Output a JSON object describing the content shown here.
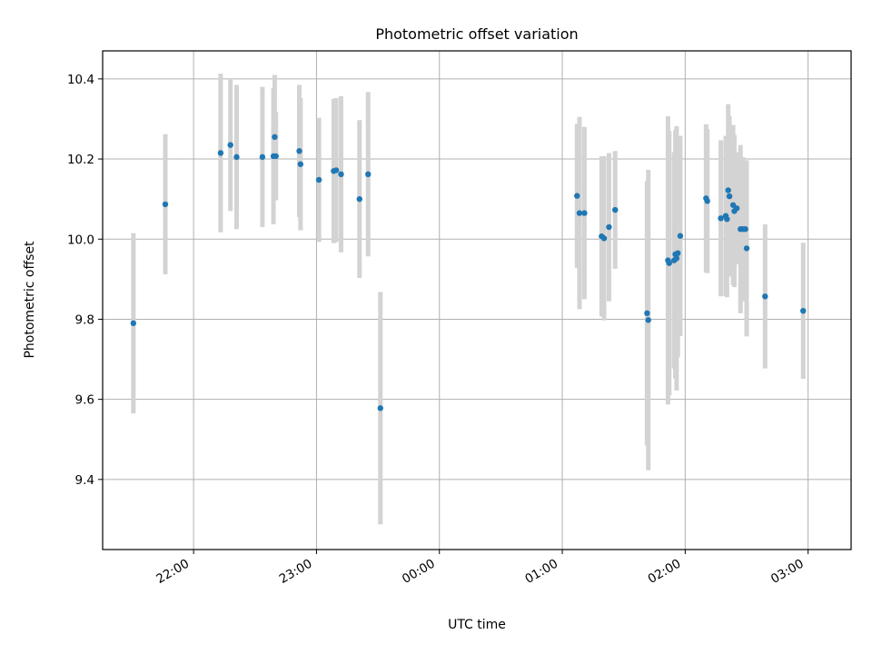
{
  "chart_data": {
    "type": "scatter",
    "title": "Photometric offset variation",
    "xlabel": "UTC time",
    "ylabel": "Photometric offset",
    "x_unit": "hours (UTC, relative to 00:00; negative = previous day)",
    "xlim": [
      -2.74,
      3.35
    ],
    "ylim": [
      9.225,
      10.47
    ],
    "grid": true,
    "x_ticks": [
      {
        "value": -2,
        "label": "22:00"
      },
      {
        "value": -1,
        "label": "23:00"
      },
      {
        "value": 0,
        "label": "00:00"
      },
      {
        "value": 1,
        "label": "01:00"
      },
      {
        "value": 2,
        "label": "02:00"
      },
      {
        "value": 3,
        "label": "03:00"
      }
    ],
    "y_ticks": [
      {
        "value": 9.4,
        "label": "9.4"
      },
      {
        "value": 9.6,
        "label": "9.6"
      },
      {
        "value": 9.8,
        "label": "9.8"
      },
      {
        "value": 10.0,
        "label": "10.0"
      },
      {
        "value": 10.2,
        "label": "10.2"
      },
      {
        "value": 10.4,
        "label": "10.4"
      }
    ],
    "marker_color": "#1f77b4",
    "errorbar_color": "#d3d3d3",
    "points": [
      {
        "x": -2.49,
        "y": 9.79,
        "err": 0.225
      },
      {
        "x": -2.23,
        "y": 10.087,
        "err": 0.175
      },
      {
        "x": -1.78,
        "y": 10.215,
        "err": 0.198
      },
      {
        "x": -1.7,
        "y": 10.235,
        "err": 0.165
      },
      {
        "x": -1.65,
        "y": 10.205,
        "err": 0.18
      },
      {
        "x": -1.44,
        "y": 10.205,
        "err": 0.175
      },
      {
        "x": -1.35,
        "y": 10.207,
        "err": 0.17
      },
      {
        "x": -1.34,
        "y": 10.255,
        "err": 0.155
      },
      {
        "x": -1.33,
        "y": 10.207,
        "err": 0.11
      },
      {
        "x": -1.14,
        "y": 10.22,
        "err": 0.165
      },
      {
        "x": -1.13,
        "y": 10.187,
        "err": 0.165
      },
      {
        "x": -0.98,
        "y": 10.148,
        "err": 0.155
      },
      {
        "x": -0.86,
        "y": 10.17,
        "err": 0.18
      },
      {
        "x": -0.84,
        "y": 10.172,
        "err": 0.18
      },
      {
        "x": -0.8,
        "y": 10.162,
        "err": 0.195
      },
      {
        "x": -0.65,
        "y": 10.1,
        "err": 0.197
      },
      {
        "x": -0.58,
        "y": 10.162,
        "err": 0.205
      },
      {
        "x": -0.48,
        "y": 9.578,
        "err": 0.29
      },
      {
        "x": 1.12,
        "y": 10.108,
        "err": 0.18
      },
      {
        "x": 1.14,
        "y": 10.065,
        "err": 0.24
      },
      {
        "x": 1.18,
        "y": 10.065,
        "err": 0.215
      },
      {
        "x": 1.32,
        "y": 10.007,
        "err": 0.2
      },
      {
        "x": 1.34,
        "y": 10.002,
        "err": 0.205
      },
      {
        "x": 1.38,
        "y": 10.03,
        "err": 0.185
      },
      {
        "x": 1.43,
        "y": 10.073,
        "err": 0.147
      },
      {
        "x": 1.69,
        "y": 9.815,
        "err": 0.33
      },
      {
        "x": 1.7,
        "y": 9.798,
        "err": 0.375
      },
      {
        "x": 1.86,
        "y": 9.947,
        "err": 0.36
      },
      {
        "x": 1.87,
        "y": 9.94,
        "err": 0.33
      },
      {
        "x": 1.91,
        "y": 9.947,
        "err": 0.27
      },
      {
        "x": 1.92,
        "y": 9.962,
        "err": 0.31
      },
      {
        "x": 1.93,
        "y": 9.952,
        "err": 0.33
      },
      {
        "x": 1.94,
        "y": 9.965,
        "err": 0.26
      },
      {
        "x": 1.96,
        "y": 10.008,
        "err": 0.25
      },
      {
        "x": 2.17,
        "y": 10.102,
        "err": 0.185
      },
      {
        "x": 2.18,
        "y": 10.095,
        "err": 0.18
      },
      {
        "x": 2.29,
        "y": 10.052,
        "err": 0.195
      },
      {
        "x": 2.33,
        "y": 10.058,
        "err": 0.2
      },
      {
        "x": 2.34,
        "y": 10.05,
        "err": 0.195
      },
      {
        "x": 2.35,
        "y": 10.122,
        "err": 0.215
      },
      {
        "x": 2.36,
        "y": 10.107,
        "err": 0.2
      },
      {
        "x": 2.39,
        "y": 10.085,
        "err": 0.2
      },
      {
        "x": 2.4,
        "y": 10.07,
        "err": 0.19
      },
      {
        "x": 2.42,
        "y": 10.077,
        "err": 0.14
      },
      {
        "x": 2.45,
        "y": 10.025,
        "err": 0.21
      },
      {
        "x": 2.47,
        "y": 10.025,
        "err": 0.18
      },
      {
        "x": 2.49,
        "y": 10.025,
        "err": 0.17
      },
      {
        "x": 2.5,
        "y": 9.977,
        "err": 0.22
      },
      {
        "x": 2.65,
        "y": 9.857,
        "err": 0.18
      },
      {
        "x": 2.96,
        "y": 9.821,
        "err": 0.17
      }
    ]
  }
}
